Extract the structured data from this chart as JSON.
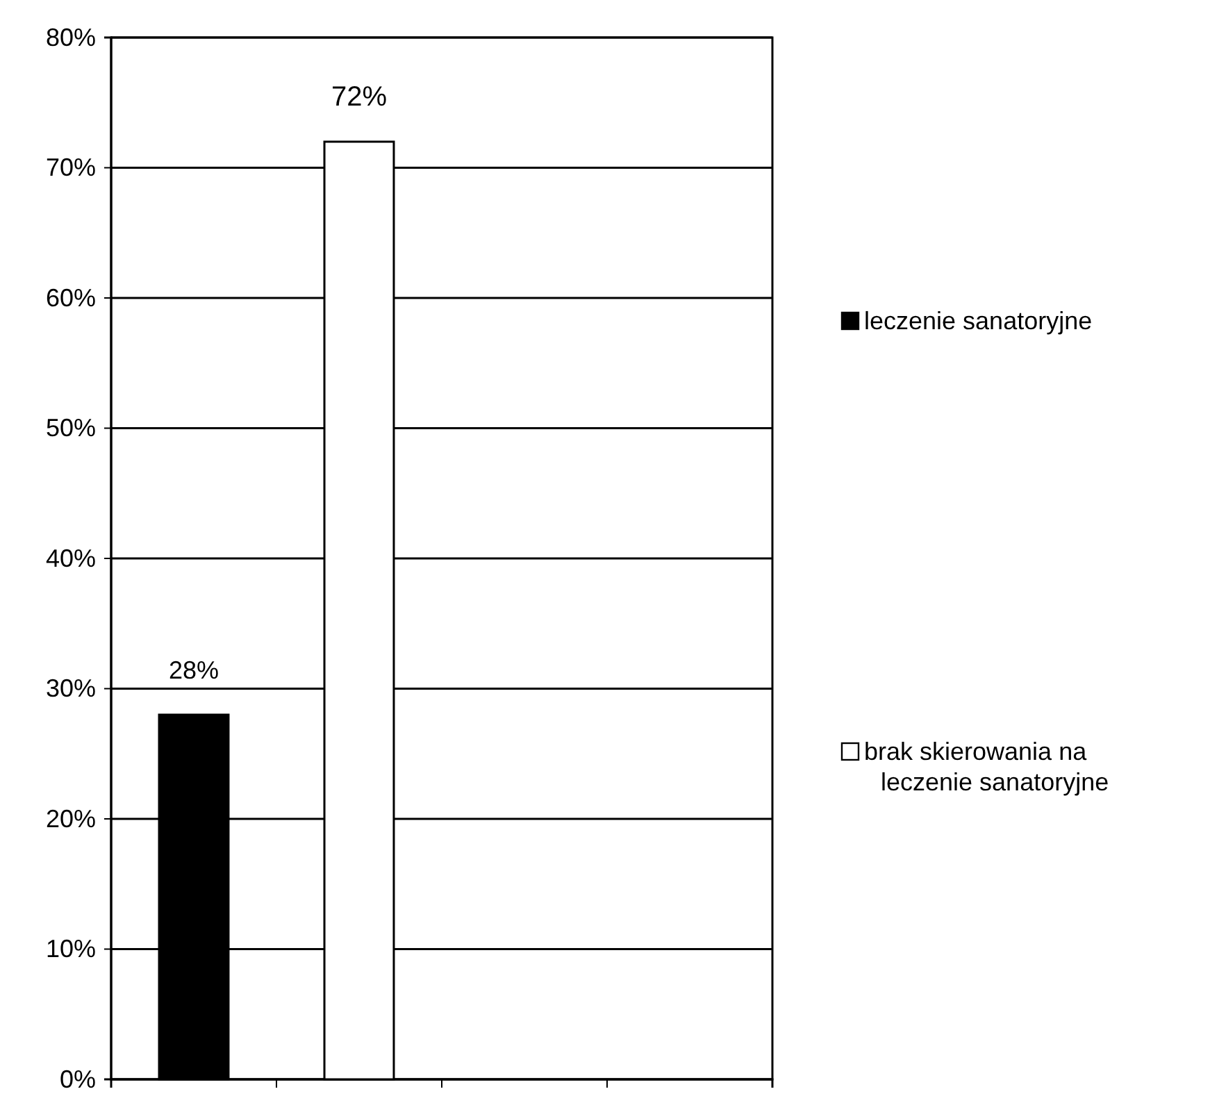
{
  "chart_data": {
    "type": "bar",
    "stacked": true,
    "categories": [
      null,
      null,
      null,
      null
    ],
    "series": [
      {
        "name": "leczenie sanatoryjne",
        "color": "#000000",
        "values": [
          28,
          null,
          null,
          null
        ],
        "value_labels": [
          "28%",
          null,
          null,
          null
        ]
      },
      {
        "name": "brak skierowania na leczenie sanatoryjne",
        "color": "#ffffff",
        "values": [
          null,
          72,
          null,
          null
        ],
        "value_labels": [
          null,
          "72%",
          null,
          null
        ]
      }
    ],
    "ylim": [
      0,
      80
    ],
    "yticks": [
      {
        "value": 0,
        "label": "0%"
      },
      {
        "value": 10,
        "label": "10%"
      },
      {
        "value": 20,
        "label": "20%"
      },
      {
        "value": 30,
        "label": "30%"
      },
      {
        "value": 40,
        "label": "40%"
      },
      {
        "value": 50,
        "label": "50%"
      },
      {
        "value": 60,
        "label": "60%"
      },
      {
        "value": 70,
        "label": "70%"
      },
      {
        "value": 80,
        "label": "80%"
      }
    ],
    "grid": "y",
    "legend": "right"
  }
}
